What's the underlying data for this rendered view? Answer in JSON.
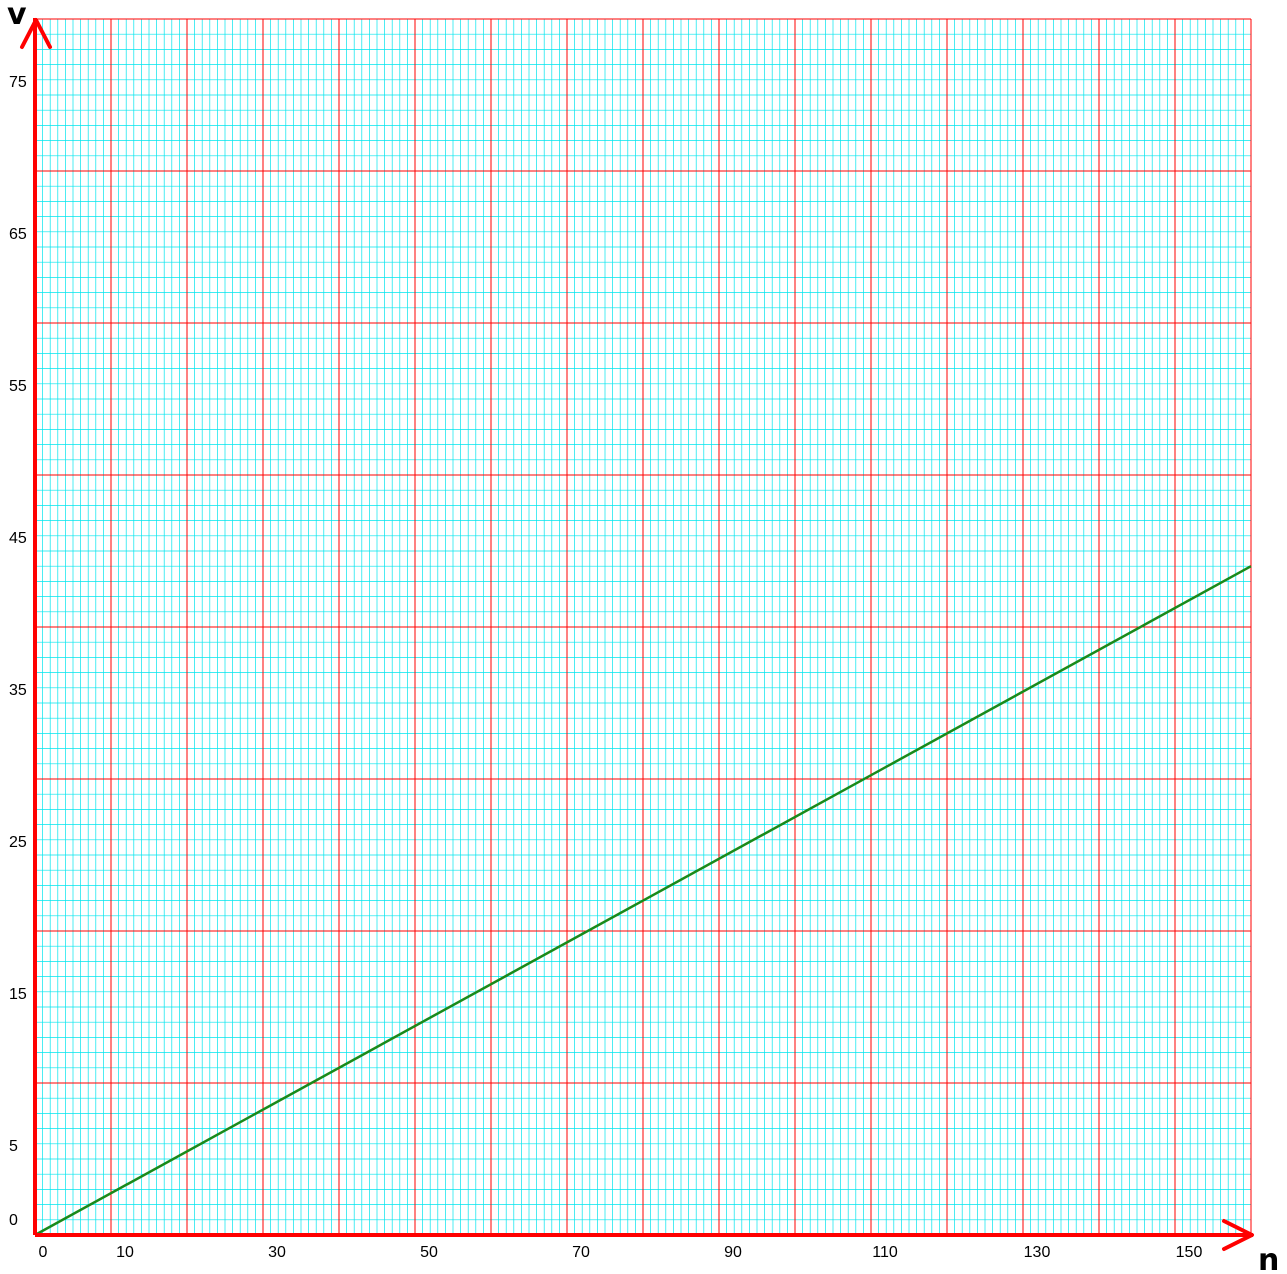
{
  "chart_data": {
    "type": "line",
    "title": "",
    "xlabel": "n",
    "ylabel": "v",
    "xlim": [
      0,
      160
    ],
    "ylim": [
      0,
      80
    ],
    "x_ticks": [
      0,
      10,
      30,
      50,
      70,
      90,
      110,
      130,
      150
    ],
    "y_ticks": [
      0,
      5,
      15,
      25,
      35,
      45,
      55,
      65,
      75
    ],
    "grid": {
      "major_step": 10,
      "minor_step": 1,
      "major_color": "#ff0000",
      "minor_color": "#00e5ee",
      "background": "#ffffff"
    },
    "axis_color": "#ff0000",
    "series": [
      {
        "color": "#1a8a1a",
        "x": [
          0,
          160
        ],
        "y": [
          0,
          44
        ]
      }
    ]
  }
}
